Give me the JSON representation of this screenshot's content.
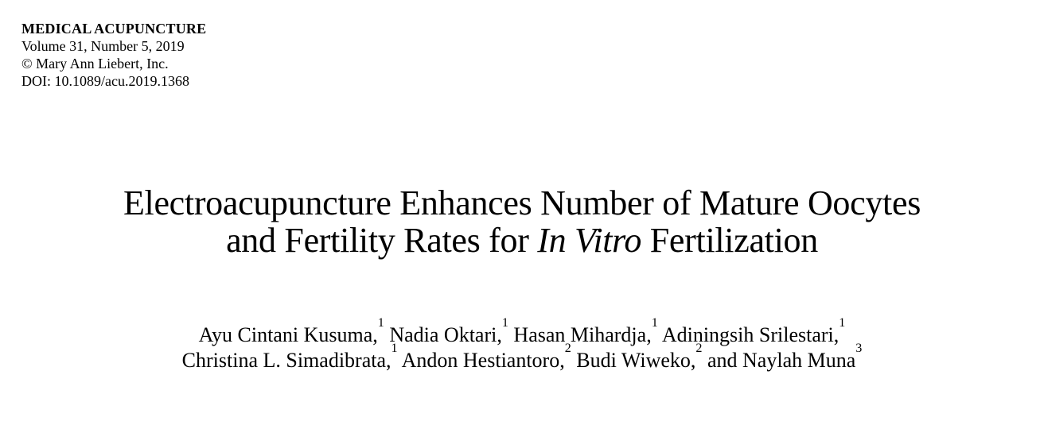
{
  "page": {
    "background_color": "#ffffff",
    "text_color": "#000000"
  },
  "header": {
    "journal": "MEDICAL ACUPUNCTURE",
    "volume_line": "Volume 31, Number 5, 2019",
    "copyright_line": "© Mary Ann Liebert, Inc.",
    "doi_line": "DOI: 10.1089/acu.2019.1368"
  },
  "title": {
    "line1": "Electroacupuncture Enhances Number of Mature Oocytes",
    "line2_pre": "and Fertility Rates for ",
    "line2_italic": "In Vitro",
    "line2_post": " Fertilization"
  },
  "authors": {
    "line1": [
      {
        "name": "Ayu Cintani Kusuma,",
        "sup": "1"
      },
      {
        "name": " Nadia Oktari,",
        "sup": "1"
      },
      {
        "name": " Hasan Mihardja,",
        "sup": "1"
      },
      {
        "name": " Adiningsih Srilestari,",
        "sup": "1"
      }
    ],
    "line2": [
      {
        "name": "Christina L. Simadibrata,",
        "sup": "1"
      },
      {
        "name": " Andon Hestiantoro,",
        "sup": "2"
      },
      {
        "name": " Budi Wiweko,",
        "sup": "2"
      },
      {
        "name": " and Naylah Muna",
        "sup": "3"
      }
    ]
  }
}
